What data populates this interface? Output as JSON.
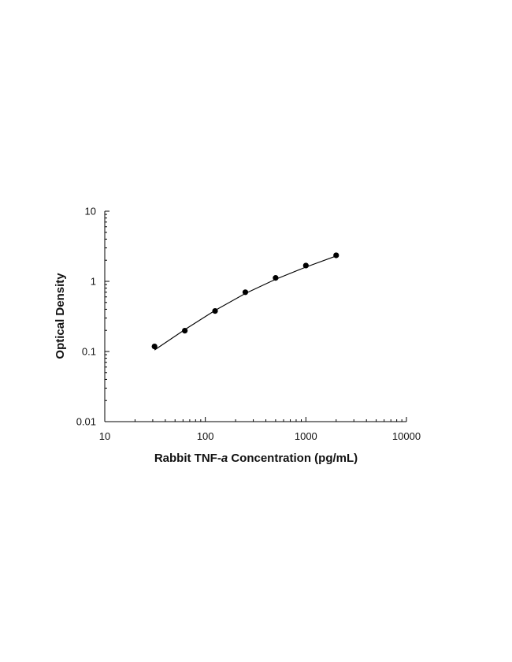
{
  "chart_data": {
    "type": "scatter",
    "title": "",
    "xlabel": {
      "prefix": "Rabbit TNF-",
      "italic": "a",
      "suffix": " Concentration (pg/mL)"
    },
    "ylabel": "Optical Density",
    "xscale": "log",
    "yscale": "log",
    "xlim": [
      10,
      10000
    ],
    "ylim": [
      0.01,
      10
    ],
    "xticks": [
      10,
      100,
      1000,
      10000
    ],
    "xtick_labels": [
      "10",
      "100",
      "1000",
      "10000"
    ],
    "yticks": [
      0.01,
      0.1,
      1,
      10
    ],
    "ytick_labels": [
      "0.01",
      "0.1",
      "1",
      "10"
    ],
    "grid": false,
    "series": [
      {
        "x": [
          31.25,
          62.5,
          125,
          250,
          500,
          1000,
          2000
        ],
        "y": [
          0.118,
          0.198,
          0.378,
          0.7,
          1.12,
          1.68,
          2.35
        ]
      }
    ],
    "fit_curve": {
      "type": "line",
      "x": [
        31.25,
        62.5,
        125,
        250,
        500,
        1000,
        2000
      ],
      "y": [
        0.105,
        0.205,
        0.385,
        0.672,
        1.07,
        1.6,
        2.3
      ]
    },
    "colors": {
      "marker": "#000000",
      "line": "#000000",
      "axis": "#000000"
    }
  }
}
